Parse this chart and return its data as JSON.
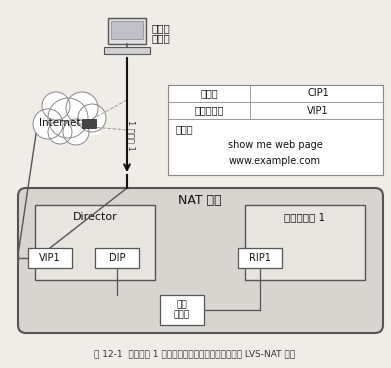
{
  "title": "NAT 集群",
  "caption": "图 12-1  在数据包 1 中，客户端计算机发送一个请求给 LVS-NAT 集群",
  "client_label1": "客户端",
  "client_label2": "计算机",
  "internet_label": "Internet",
  "packet_side_label": "1 包数据 1",
  "packet_box": {
    "row1_label": "源地址",
    "row1_val": "CIP1",
    "row2_label": "目的地地址",
    "row2_val": "VIP1",
    "content_label": "内容：",
    "content_line1": "show me web page",
    "content_line2": "www.example.com"
  },
  "director_label": "Director",
  "real_server_label": "真实服务器 1",
  "vip1_label": "VIP1",
  "dip_label": "DIP",
  "rip1_label": "RIP1",
  "hub_label": "迷你\n集线器",
  "bg_color": "#f0ede8",
  "nat_fill": "#d8d5d0",
  "white": "#ffffff",
  "director_fill": "#e8e5e0",
  "real_fill": "#e8e5e0",
  "cloud_fill": "#ffffff",
  "text_dark": "#111111",
  "text_mid": "#333333",
  "border": "#555555",
  "border_light": "#888888",
  "dashed_color": "#999999"
}
